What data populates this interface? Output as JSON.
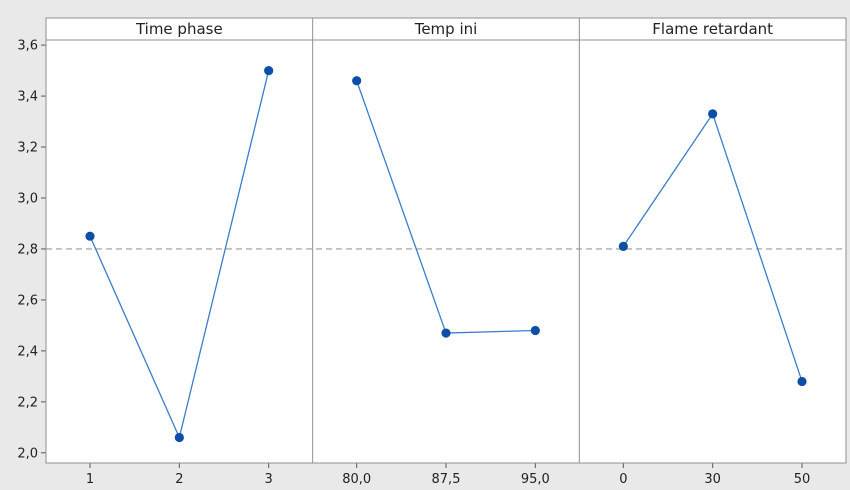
{
  "chart_data": {
    "type": "line",
    "subtype": "main-effects-plot",
    "ylim": [
      1.96,
      3.62
    ],
    "yticks": [
      2.0,
      2.2,
      2.4,
      2.6,
      2.8,
      3.0,
      3.2,
      3.4,
      3.6
    ],
    "ytick_labels": [
      "2,0",
      "2,2",
      "2,4",
      "2,6",
      "2,8",
      "3,0",
      "3,2",
      "3,4",
      "3,6"
    ],
    "reference_line": 2.8,
    "grid": false,
    "line_color": "#3a7dc9",
    "marker_color": "#0d4ea6",
    "reference_color": "#9a9a9a",
    "panels": [
      {
        "title": "Time phase",
        "categories": [
          "1",
          "2",
          "3"
        ],
        "values": [
          2.85,
          2.06,
          3.5
        ]
      },
      {
        "title": "Temp ini",
        "categories": [
          "80,0",
          "87,5",
          "95,0"
        ],
        "values": [
          3.46,
          2.47,
          2.48
        ]
      },
      {
        "title": "Flame retardant",
        "categories": [
          "0",
          "30",
          "50"
        ],
        "values": [
          2.81,
          3.33,
          2.28
        ]
      }
    ]
  }
}
